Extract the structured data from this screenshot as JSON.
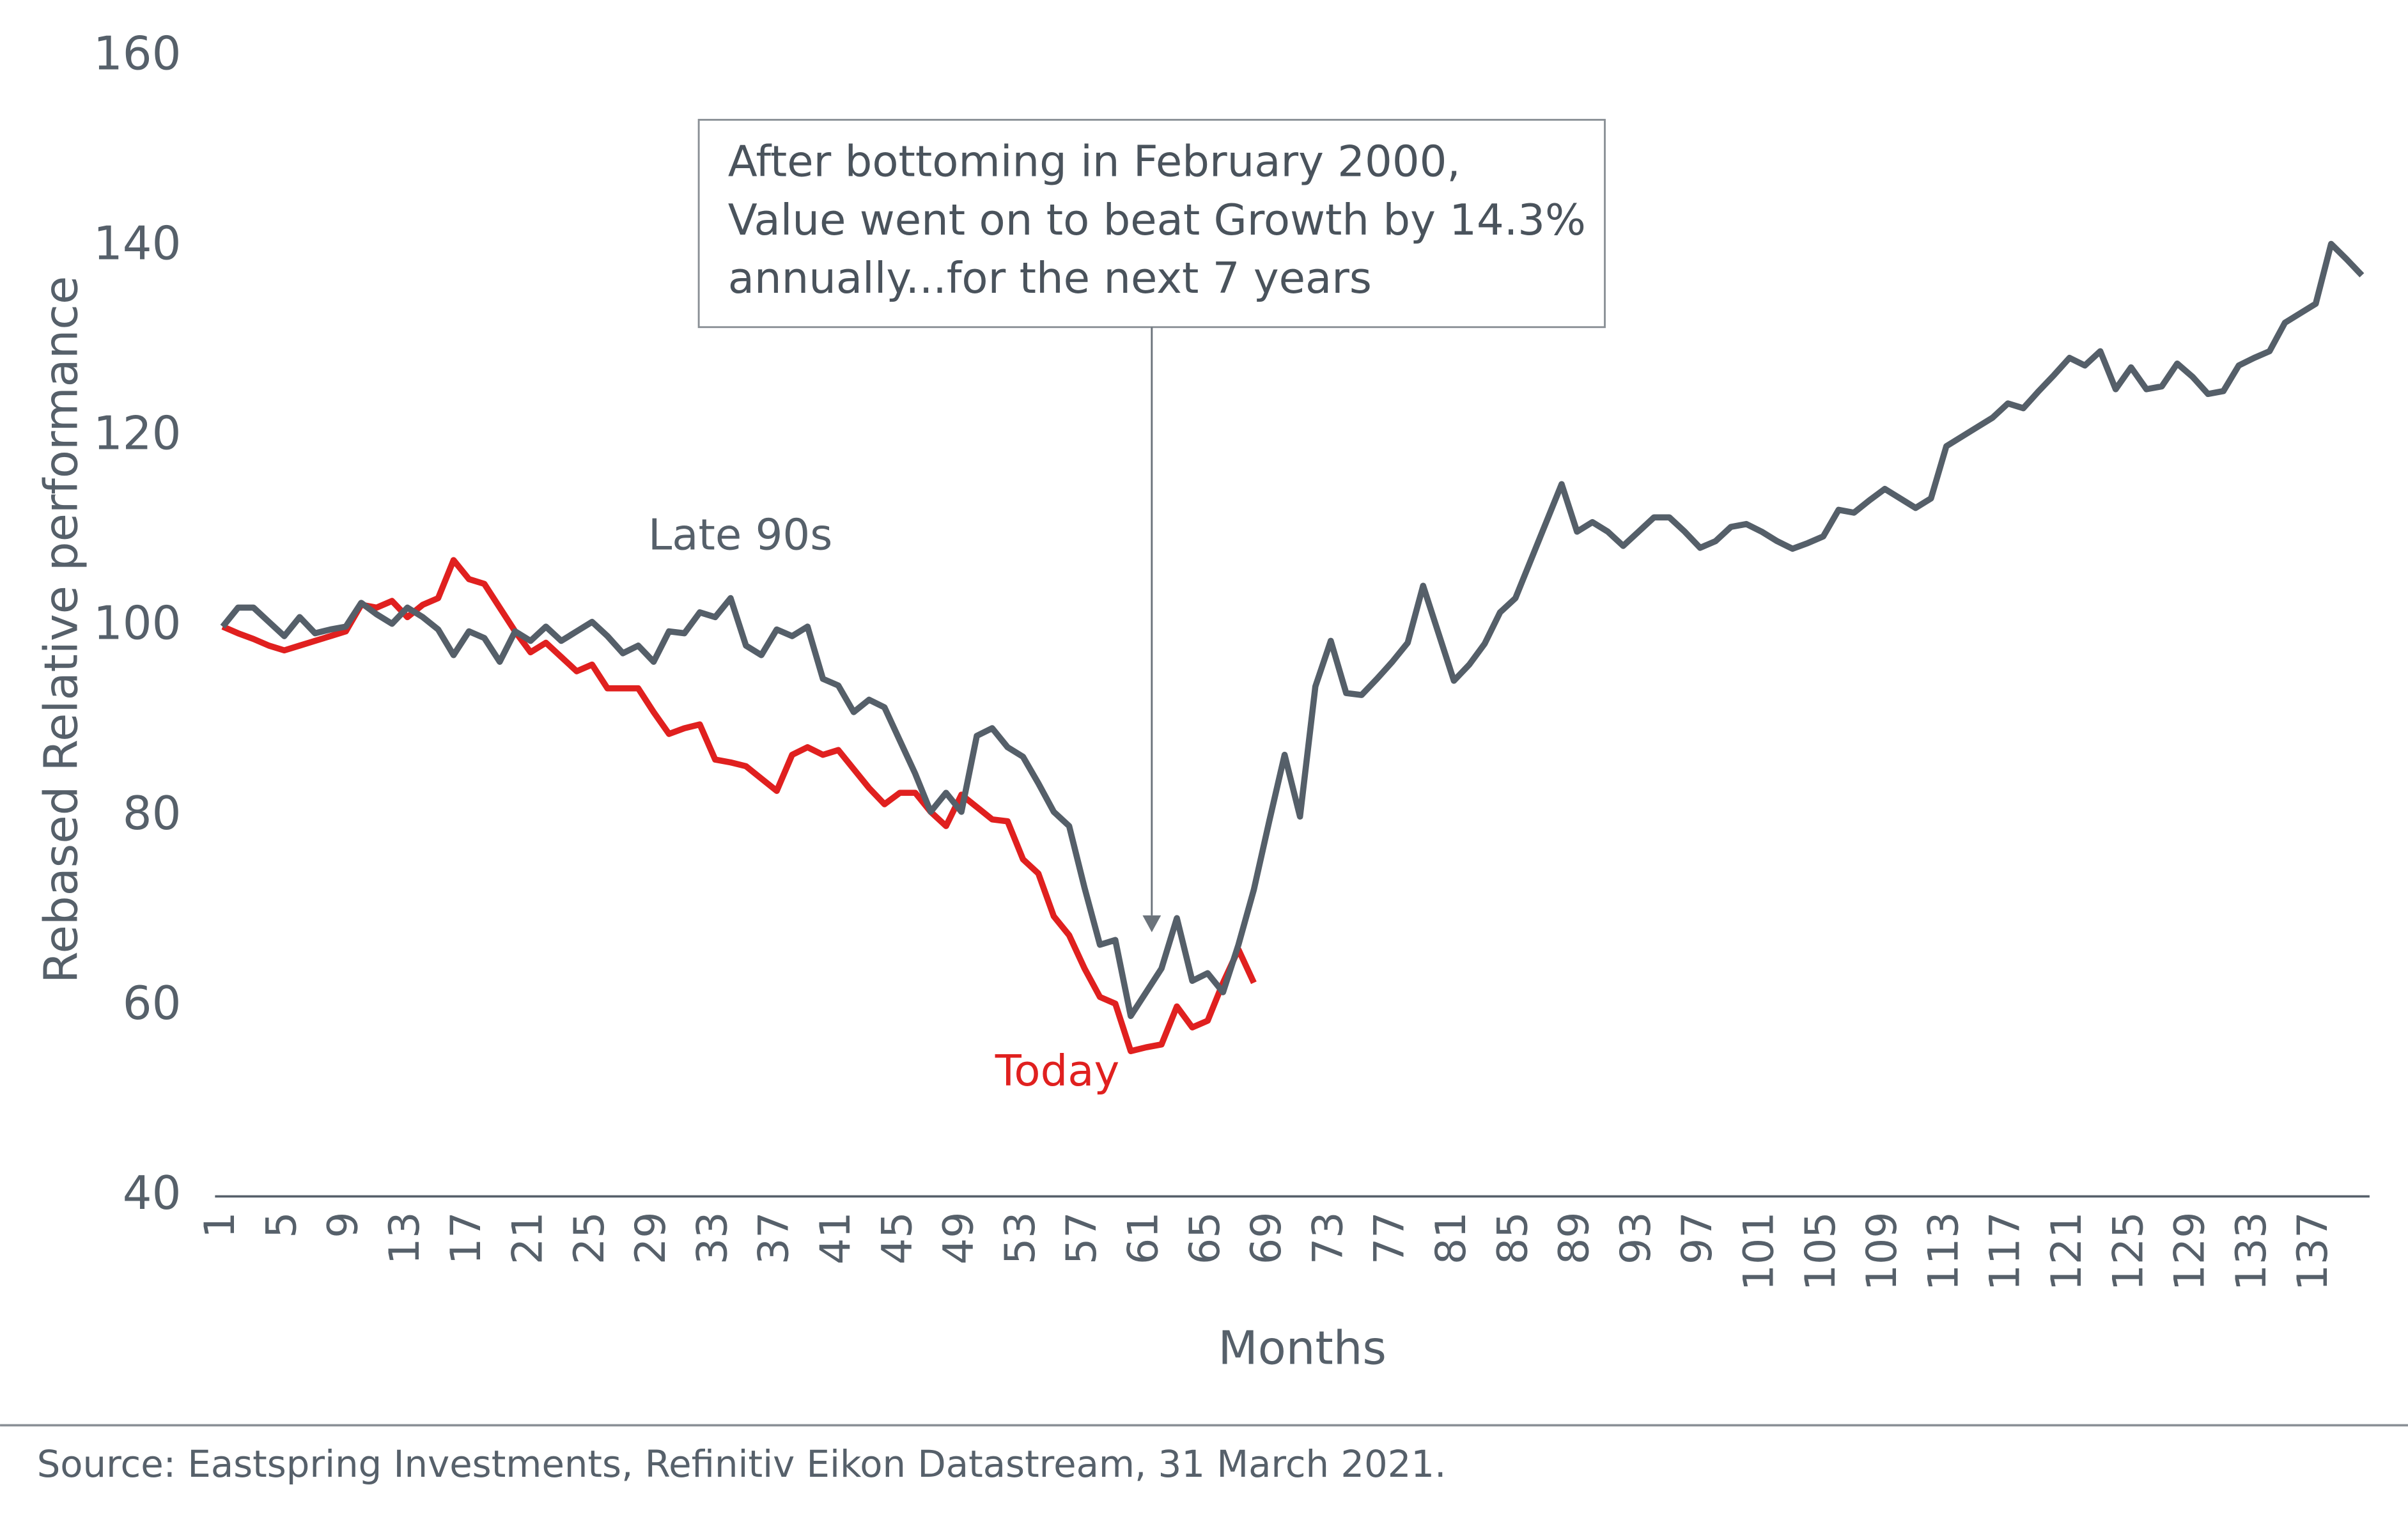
{
  "chart_data": {
    "type": "line",
    "y_axis_label": "Rebased Relative performance",
    "x_axis_label": "Months",
    "annotation": [
      "After bottoming in February 2000,",
      "Value went on to beat Growth by 14.3%",
      "annually...for the next 7 years"
    ],
    "source": "Source: Eastspring Investments, Refinitiv Eikon Datastream, 31 March 2021.",
    "ylim": [
      40,
      160
    ],
    "yticks": [
      40,
      60,
      80,
      100,
      120,
      140,
      160
    ],
    "categories": [
      1,
      null,
      null,
      null,
      5,
      null,
      null,
      null,
      9,
      null,
      null,
      null,
      13,
      null,
      null,
      null,
      17,
      null,
      null,
      null,
      21,
      null,
      null,
      null,
      25,
      null,
      null,
      null,
      29,
      null,
      null,
      null,
      33,
      null,
      null,
      null,
      37,
      null,
      null,
      null,
      41,
      null,
      null,
      null,
      45,
      null,
      null,
      null,
      49,
      null,
      null,
      null,
      53,
      null,
      null,
      null,
      57,
      null,
      null,
      null,
      61,
      null,
      null,
      null,
      65,
      null,
      null,
      null,
      69,
      null,
      null,
      null,
      73,
      null,
      null,
      null,
      77,
      null,
      null,
      null,
      81,
      null,
      null,
      null,
      85,
      null,
      null,
      null,
      89,
      null,
      null,
      null,
      93,
      null,
      null,
      null,
      97,
      null,
      null,
      null,
      101,
      null,
      null,
      null,
      105,
      null,
      null,
      null,
      109,
      null,
      null,
      null,
      113,
      null,
      null,
      null,
      117,
      null,
      null,
      null,
      121,
      null,
      null,
      null,
      125,
      null,
      null,
      null,
      129,
      null,
      null,
      null,
      133,
      null,
      null,
      null,
      137,
      null,
      null,
      null
    ],
    "series": [
      {
        "name": "Late 90s",
        "color": "#555f69",
        "values": [
          100,
          102,
          102,
          100.5,
          99,
          101,
          99.3,
          99.7,
          100,
          102.5,
          101.3,
          100.3,
          102,
          101,
          99.7,
          97,
          99.5,
          98.8,
          96.3,
          99.5,
          98.5,
          100,
          98.5,
          99.5,
          100.5,
          99,
          97.2,
          98,
          96.3,
          99.5,
          99.3,
          101.5,
          101,
          103,
          98,
          97,
          99.7,
          99,
          100,
          94.5,
          93.8,
          91,
          92.3,
          91.5,
          88,
          84.5,
          80.5,
          82.5,
          80.5,
          88.5,
          89.3,
          87.3,
          86.3,
          83.5,
          80.5,
          79,
          72.5,
          66.5,
          67,
          59,
          61.5,
          64,
          69.3,
          62.7,
          63.5,
          61.5,
          66.5,
          72.3,
          79.5,
          86.5,
          80,
          93.7,
          98.5,
          93,
          92.8,
          94.5,
          96.3,
          98.3,
          104.3,
          99.3,
          94.3,
          96,
          98.2,
          101.5,
          103,
          107,
          111,
          115,
          110,
          111,
          110,
          108.5,
          110,
          111.5,
          111.5,
          110,
          108.3,
          109,
          110.5,
          110.8,
          110,
          109,
          108.2,
          108.8,
          109.5,
          112.3,
          112,
          113.3,
          114.5,
          113.5,
          112.5,
          113.5,
          119,
          120,
          121,
          122,
          123.5,
          123,
          124.8,
          126.5,
          128.3,
          127.5,
          129,
          125,
          127.3,
          125,
          125.3,
          127.7,
          126.3,
          124.5,
          124.8,
          127.5,
          128.3,
          129,
          132,
          133,
          134,
          140.3,
          138.7,
          137
        ]
      },
      {
        "name": "Today",
        "color": "#e0201f",
        "values": [
          100,
          99.3,
          98.7,
          98,
          97.5,
          98,
          98.5,
          99,
          99.5,
          102.3,
          102,
          102.7,
          101,
          102.3,
          103,
          107,
          105,
          104.5,
          102,
          99.5,
          97.3,
          98.3,
          96.8,
          95.3,
          96,
          93.5,
          93.5,
          93.5,
          91,
          88.7,
          89.3,
          89.7,
          86,
          85.7,
          85.3,
          84,
          82.7,
          86.5,
          87.3,
          86.5,
          87,
          85,
          83,
          81.3,
          82.5,
          82.5,
          80.5,
          79,
          82.3,
          81,
          79.7,
          79.5,
          75.5,
          74,
          69.5,
          67.5,
          64,
          61,
          60.3,
          55.3,
          55.7,
          56,
          60,
          57.8,
          58.5,
          62.5,
          66,
          62.5,
          null,
          null,
          null,
          null,
          null,
          null,
          null,
          null,
          null,
          null,
          null,
          null,
          null,
          null,
          null,
          null,
          null,
          null,
          null,
          null,
          null,
          null,
          null,
          null,
          null,
          null,
          null,
          null,
          null,
          null,
          null,
          null,
          null,
          null,
          null,
          null,
          null,
          null,
          null,
          null,
          null,
          null,
          null,
          null,
          null,
          null,
          null,
          null,
          null,
          null,
          null,
          null,
          null,
          null,
          null,
          null,
          null,
          null,
          null,
          null,
          null,
          null,
          null,
          null,
          null,
          null,
          null,
          null,
          null,
          null,
          null,
          null
        ]
      }
    ]
  }
}
